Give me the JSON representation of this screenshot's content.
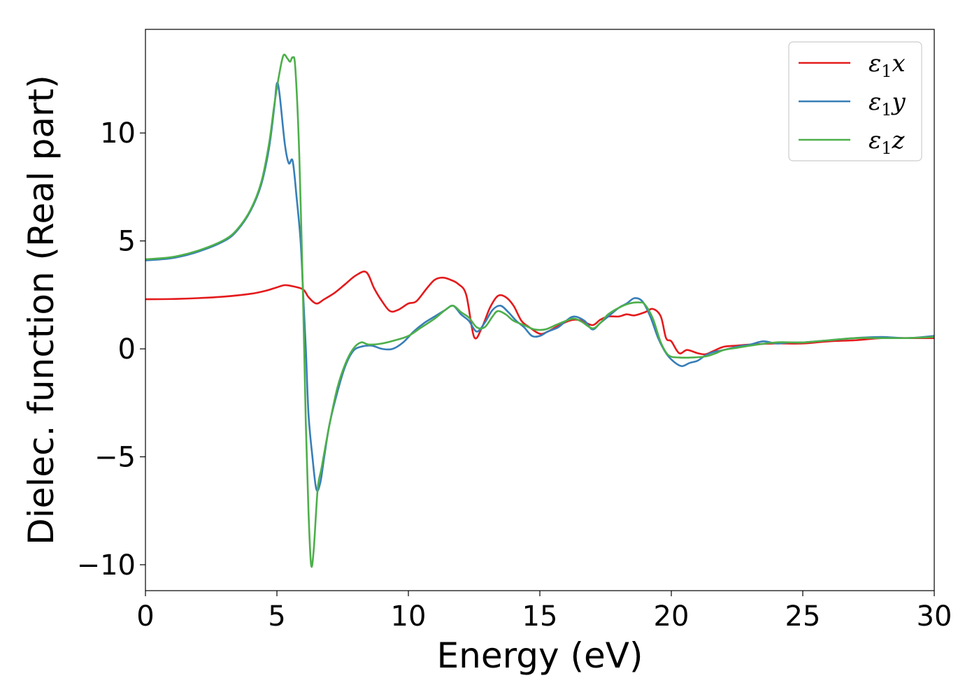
{
  "chart_data": {
    "type": "line",
    "title": "",
    "xlabel": "Energy (eV)",
    "ylabel": "Dielec. function (Real part)",
    "xlim": [
      0,
      30
    ],
    "ylim": [
      -11.2,
      14.8
    ],
    "xticks": [
      0,
      5,
      10,
      15,
      20,
      25,
      30
    ],
    "xtick_labels": [
      "0",
      "5",
      "10",
      "15",
      "20",
      "25",
      "30"
    ],
    "yticks": [
      -10,
      -5,
      0,
      5,
      10
    ],
    "ytick_labels": [
      "−10",
      "−5",
      "0",
      "5",
      "10"
    ],
    "grid": false,
    "legend_position": "top-right",
    "series": [
      {
        "name": "ε1x",
        "legend_base": "ε",
        "legend_sub": "1",
        "legend_suffix": "x",
        "color": "#e41a1c",
        "points": [
          [
            0,
            2.3
          ],
          [
            1,
            2.31
          ],
          [
            2,
            2.35
          ],
          [
            3,
            2.42
          ],
          [
            4,
            2.55
          ],
          [
            4.6,
            2.7
          ],
          [
            5,
            2.85
          ],
          [
            5.3,
            2.95
          ],
          [
            5.6,
            2.9
          ],
          [
            6,
            2.75
          ],
          [
            6.2,
            2.4
          ],
          [
            6.5,
            2.1
          ],
          [
            6.8,
            2.3
          ],
          [
            7.2,
            2.6
          ],
          [
            7.6,
            3.0
          ],
          [
            8,
            3.4
          ],
          [
            8.4,
            3.55
          ],
          [
            8.7,
            2.8
          ],
          [
            9,
            2.2
          ],
          [
            9.3,
            1.75
          ],
          [
            9.6,
            1.8
          ],
          [
            10,
            2.1
          ],
          [
            10.3,
            2.2
          ],
          [
            10.7,
            2.8
          ],
          [
            11,
            3.2
          ],
          [
            11.3,
            3.3
          ],
          [
            11.6,
            3.2
          ],
          [
            11.9,
            3.0
          ],
          [
            12.2,
            2.5
          ],
          [
            12.5,
            0.55
          ],
          [
            12.8,
            1.0
          ],
          [
            13.1,
            1.9
          ],
          [
            13.4,
            2.45
          ],
          [
            13.7,
            2.4
          ],
          [
            14,
            2.0
          ],
          [
            14.3,
            1.3
          ],
          [
            14.6,
            1.0
          ],
          [
            15,
            0.7
          ],
          [
            15.3,
            0.8
          ],
          [
            15.6,
            1.0
          ],
          [
            16,
            1.25
          ],
          [
            16.3,
            1.35
          ],
          [
            16.6,
            1.3
          ],
          [
            17,
            1.1
          ],
          [
            17.3,
            1.35
          ],
          [
            17.6,
            1.5
          ],
          [
            18,
            1.5
          ],
          [
            18.3,
            1.6
          ],
          [
            18.6,
            1.55
          ],
          [
            19,
            1.7
          ],
          [
            19.3,
            1.85
          ],
          [
            19.6,
            1.5
          ],
          [
            19.8,
            0.5
          ],
          [
            20,
            0.35
          ],
          [
            20.3,
            -0.2
          ],
          [
            20.6,
            -0.05
          ],
          [
            21,
            -0.2
          ],
          [
            21.3,
            -0.25
          ],
          [
            21.6,
            -0.1
          ],
          [
            22,
            0.1
          ],
          [
            22.5,
            0.15
          ],
          [
            23,
            0.2
          ],
          [
            24,
            0.25
          ],
          [
            25,
            0.25
          ],
          [
            26,
            0.35
          ],
          [
            27,
            0.4
          ],
          [
            28,
            0.5
          ],
          [
            29,
            0.5
          ],
          [
            30,
            0.5
          ]
        ]
      },
      {
        "name": "ε1y",
        "legend_base": "ε",
        "legend_sub": "1",
        "legend_suffix": "y",
        "color": "#377eb8",
        "points": [
          [
            0,
            4.1
          ],
          [
            1,
            4.2
          ],
          [
            2,
            4.5
          ],
          [
            3,
            5.0
          ],
          [
            3.5,
            5.5
          ],
          [
            4,
            6.4
          ],
          [
            4.4,
            7.6
          ],
          [
            4.7,
            9.3
          ],
          [
            4.9,
            11.2
          ],
          [
            5.0,
            12.3
          ],
          [
            5.1,
            11.8
          ],
          [
            5.3,
            9.5
          ],
          [
            5.45,
            8.6
          ],
          [
            5.6,
            8.7
          ],
          [
            5.75,
            7.0
          ],
          [
            5.9,
            5.0
          ],
          [
            6.0,
            2.5
          ],
          [
            6.1,
            0.0
          ],
          [
            6.2,
            -3.0
          ],
          [
            6.35,
            -5.0
          ],
          [
            6.5,
            -6.5
          ],
          [
            6.65,
            -6.2
          ],
          [
            6.8,
            -5.0
          ],
          [
            7,
            -3.5
          ],
          [
            7.3,
            -2.0
          ],
          [
            7.6,
            -0.8
          ],
          [
            7.9,
            -0.1
          ],
          [
            8.2,
            0.1
          ],
          [
            8.6,
            0.15
          ],
          [
            9,
            0.0
          ],
          [
            9.4,
            0.0
          ],
          [
            9.8,
            0.3
          ],
          [
            10.2,
            0.8
          ],
          [
            10.6,
            1.2
          ],
          [
            11,
            1.5
          ],
          [
            11.4,
            1.8
          ],
          [
            11.7,
            2.0
          ],
          [
            12,
            1.6
          ],
          [
            12.3,
            1.3
          ],
          [
            12.6,
            0.8
          ],
          [
            12.9,
            1.2
          ],
          [
            13.2,
            1.8
          ],
          [
            13.5,
            2.0
          ],
          [
            13.8,
            1.7
          ],
          [
            14.1,
            1.3
          ],
          [
            14.4,
            1.0
          ],
          [
            14.7,
            0.6
          ],
          [
            15,
            0.6
          ],
          [
            15.3,
            0.8
          ],
          [
            15.7,
            1.0
          ],
          [
            16,
            1.3
          ],
          [
            16.3,
            1.5
          ],
          [
            16.7,
            1.3
          ],
          [
            17,
            0.9
          ],
          [
            17.3,
            1.2
          ],
          [
            17.6,
            1.5
          ],
          [
            18,
            1.9
          ],
          [
            18.3,
            2.1
          ],
          [
            18.6,
            2.35
          ],
          [
            18.9,
            2.2
          ],
          [
            19.2,
            1.5
          ],
          [
            19.5,
            0.5
          ],
          [
            19.8,
            -0.2
          ],
          [
            20.1,
            -0.6
          ],
          [
            20.4,
            -0.8
          ],
          [
            20.7,
            -0.65
          ],
          [
            21,
            -0.55
          ],
          [
            21.3,
            -0.3
          ],
          [
            21.6,
            -0.15
          ],
          [
            22,
            -0.05
          ],
          [
            22.5,
            0.1
          ],
          [
            23,
            0.2
          ],
          [
            23.5,
            0.35
          ],
          [
            24,
            0.25
          ],
          [
            24.5,
            0.3
          ],
          [
            25,
            0.3
          ],
          [
            26,
            0.4
          ],
          [
            27,
            0.5
          ],
          [
            28,
            0.55
          ],
          [
            29,
            0.5
          ],
          [
            30,
            0.6
          ]
        ]
      },
      {
        "name": "ε1z",
        "legend_base": "ε",
        "legend_sub": "1",
        "legend_suffix": "z",
        "color": "#4daf4a",
        "points": [
          [
            0,
            4.15
          ],
          [
            1,
            4.25
          ],
          [
            2,
            4.55
          ],
          [
            3,
            5.05
          ],
          [
            3.5,
            5.55
          ],
          [
            4,
            6.45
          ],
          [
            4.4,
            7.7
          ],
          [
            4.7,
            9.5
          ],
          [
            4.9,
            11.3
          ],
          [
            5.1,
            12.8
          ],
          [
            5.25,
            13.6
          ],
          [
            5.4,
            13.45
          ],
          [
            5.5,
            13.3
          ],
          [
            5.6,
            13.5
          ],
          [
            5.7,
            13.0
          ],
          [
            5.85,
            9.0
          ],
          [
            6.0,
            2.0
          ],
          [
            6.1,
            -3.5
          ],
          [
            6.2,
            -7.5
          ],
          [
            6.3,
            -10.0
          ],
          [
            6.4,
            -9.3
          ],
          [
            6.55,
            -6.5
          ],
          [
            6.7,
            -5.5
          ],
          [
            7,
            -3.5
          ],
          [
            7.3,
            -1.8
          ],
          [
            7.6,
            -0.7
          ],
          [
            7.9,
            0.0
          ],
          [
            8.2,
            0.3
          ],
          [
            8.5,
            0.2
          ],
          [
            9,
            0.25
          ],
          [
            9.5,
            0.4
          ],
          [
            10,
            0.6
          ],
          [
            10.5,
            1.0
          ],
          [
            11,
            1.4
          ],
          [
            11.4,
            1.8
          ],
          [
            11.7,
            2.0
          ],
          [
            12,
            1.7
          ],
          [
            12.3,
            1.45
          ],
          [
            12.6,
            1.0
          ],
          [
            12.9,
            1.0
          ],
          [
            13.2,
            1.5
          ],
          [
            13.4,
            1.75
          ],
          [
            13.7,
            1.6
          ],
          [
            14,
            1.3
          ],
          [
            14.4,
            1.1
          ],
          [
            14.8,
            0.9
          ],
          [
            15.2,
            0.9
          ],
          [
            15.6,
            1.1
          ],
          [
            16,
            1.3
          ],
          [
            16.3,
            1.4
          ],
          [
            16.6,
            1.25
          ],
          [
            17,
            0.95
          ],
          [
            17.3,
            1.2
          ],
          [
            17.6,
            1.6
          ],
          [
            18,
            1.9
          ],
          [
            18.4,
            2.1
          ],
          [
            18.8,
            2.15
          ],
          [
            19,
            2.05
          ],
          [
            19.3,
            1.4
          ],
          [
            19.6,
            0.3
          ],
          [
            19.9,
            -0.3
          ],
          [
            20.3,
            -0.4
          ],
          [
            20.8,
            -0.4
          ],
          [
            21.3,
            -0.35
          ],
          [
            21.7,
            -0.2
          ],
          [
            22,
            -0.05
          ],
          [
            22.5,
            0.05
          ],
          [
            23,
            0.15
          ],
          [
            24,
            0.3
          ],
          [
            25,
            0.3
          ],
          [
            26,
            0.4
          ],
          [
            27,
            0.5
          ],
          [
            28,
            0.5
          ],
          [
            29,
            0.5
          ],
          [
            30,
            0.55
          ]
        ]
      }
    ]
  }
}
